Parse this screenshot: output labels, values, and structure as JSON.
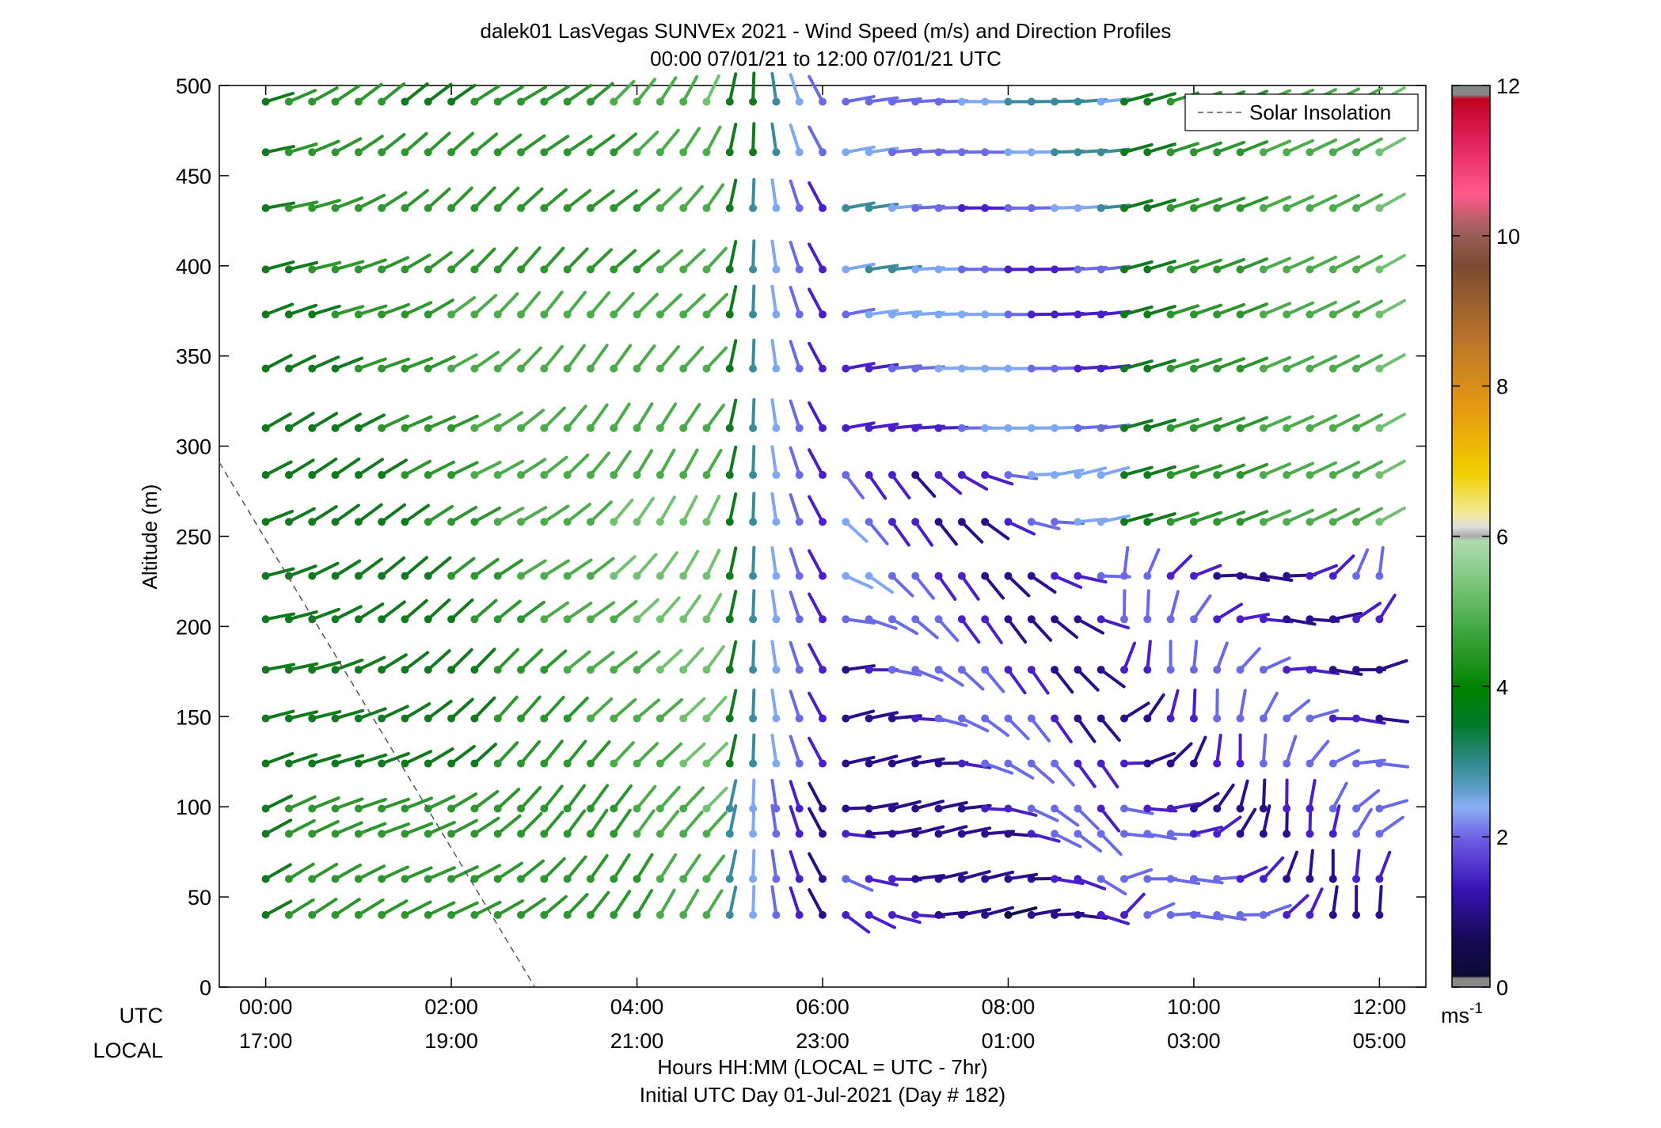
{
  "chart_data": {
    "type": "wind_barb_profile",
    "title_line1": "dalek01 LasVegas SUNVEx 2021 - Wind Speed (m/s) and Direction Profiles",
    "title_line2": "00:00 07/01/21 to 12:00 07/01/21  UTC",
    "ylabel": "Altitude (m)",
    "ylim": [
      0,
      500
    ],
    "yticks": [
      0,
      50,
      100,
      150,
      200,
      250,
      300,
      350,
      400,
      450,
      500
    ],
    "xlim_hours": [
      -0.5,
      12.5
    ],
    "xticks_hours": [
      0,
      2,
      4,
      6,
      8,
      10,
      12
    ],
    "xtick_labels_utc": [
      "00:00",
      "02:00",
      "04:00",
      "06:00",
      "08:00",
      "10:00",
      "12:00"
    ],
    "xtick_labels_local": [
      "17:00",
      "19:00",
      "21:00",
      "23:00",
      "01:00",
      "03:00",
      "05:00"
    ],
    "row_label_utc": "UTC",
    "row_label_local": "LOCAL",
    "xlabel_line1": "Hours HH:MM  (LOCAL = UTC - 7hr)",
    "xlabel_line2": "Initial UTC Day 01-Jul-2021 (Day # 182)",
    "legend": {
      "label": "Solar Insolation",
      "position": "top-right"
    },
    "solar_insolation_line": {
      "x_hours": [
        -0.5,
        2.9
      ],
      "altitude_m": [
        291,
        0
      ]
    },
    "colorbar": {
      "min": 0,
      "max": 12,
      "ticks": [
        0,
        2,
        4,
        6,
        8,
        10,
        12
      ],
      "unit_label": "ms",
      "unit_exponent": "-1"
    },
    "time_samples_hours": [
      0,
      0.25,
      0.5,
      0.75,
      1.0,
      1.25,
      1.5,
      1.75,
      2.0,
      2.25,
      2.5,
      2.75,
      3.0,
      3.25,
      3.5,
      3.75,
      4.0,
      4.25,
      4.5,
      4.75,
      5.0,
      5.25,
      5.5,
      5.75,
      6.0,
      6.25,
      6.5,
      6.75,
      7.0,
      7.25,
      7.5,
      7.75,
      8.0,
      8.25,
      8.5,
      8.75,
      9.0,
      9.25,
      9.5,
      9.75,
      10.0,
      10.25,
      10.5,
      10.75,
      11.0,
      11.25,
      11.5,
      11.75,
      12.0
    ],
    "altitudes_m": [
      40,
      60,
      85,
      99,
      124,
      149,
      176,
      204,
      228,
      258,
      284,
      310,
      343,
      373,
      398,
      432,
      463,
      491
    ]
  }
}
